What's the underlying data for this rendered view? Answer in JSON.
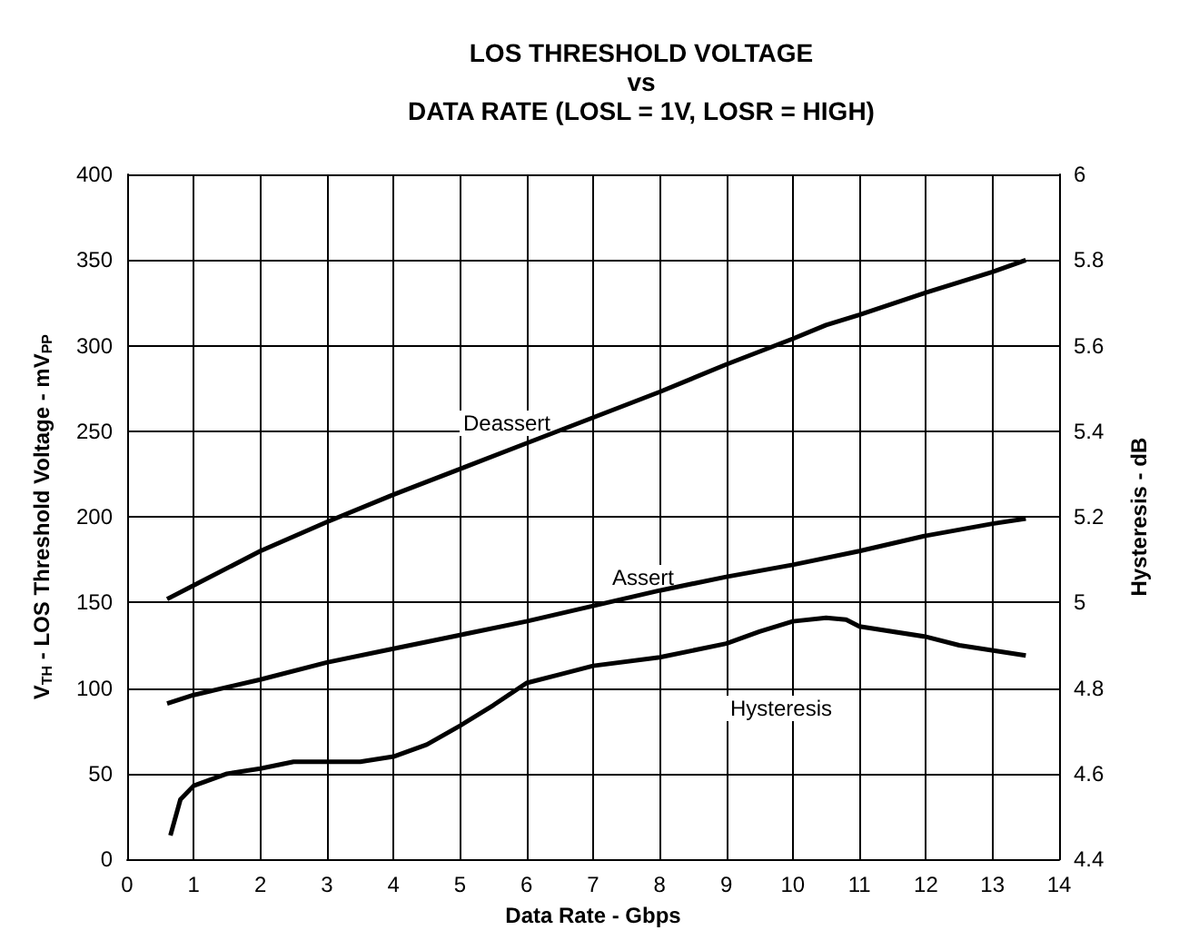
{
  "chart_data": {
    "type": "line",
    "title": "LOS THRESHOLD VOLTAGE\nvs\nDATA RATE (LOSL = 1V, LOSR = HIGH)",
    "xlabel": "Data Rate - Gbps",
    "ylabel": "V$_{TH}$ - LOS Threshold Voltage - mV$_{PP}$",
    "y2label": "Hysteresis - dB",
    "xlim": [
      0,
      14
    ],
    "xticks": [
      0,
      1,
      2,
      3,
      4,
      5,
      6,
      7,
      8,
      9,
      10,
      11,
      12,
      13,
      14
    ],
    "ylim": [
      0,
      400
    ],
    "yticks": [
      0,
      50,
      100,
      150,
      200,
      250,
      300,
      350,
      400
    ],
    "y2lim": [
      4.4,
      6
    ],
    "y2ticks": [
      4.4,
      4.6,
      4.8,
      5,
      5.2,
      5.4,
      5.6,
      5.8,
      6
    ],
    "grid": true,
    "marker": "none",
    "line_style": "solid",
    "series": [
      {
        "color": "#000000",
        "x": [
          0.6,
          1,
          2,
          3,
          4,
          5,
          6,
          7,
          8,
          9,
          10,
          10.5,
          11,
          12,
          13,
          13.5
        ],
        "values": [
          152,
          160,
          180,
          197,
          213,
          228,
          243,
          258,
          273,
          289,
          304,
          312,
          318,
          331,
          343,
          350
        ]
      },
      {
        "color": "#000000",
        "x": [
          0.6,
          1,
          2,
          3,
          4,
          5,
          6,
          7,
          8,
          9,
          10,
          11,
          12,
          13,
          13.5
        ],
        "values": [
          91,
          96,
          105,
          115,
          123,
          131,
          139,
          148,
          157,
          165,
          172,
          180,
          189,
          196,
          199
        ]
      },
      {
        "color": "#000000",
        "axis": "y2",
        "x": [
          0.65,
          0.8,
          1,
          1.5,
          2,
          2.5,
          3,
          3.5,
          4,
          4.5,
          5,
          5.5,
          6,
          6.5,
          7,
          8,
          9,
          9.5,
          10,
          10.5,
          10.8,
          11,
          12,
          12.5,
          13.5
        ],
        "values": [
          4.456,
          4.54,
          4.572,
          4.6,
          4.612,
          4.628,
          4.628,
          4.628,
          4.64,
          4.668,
          4.712,
          4.76,
          4.812,
          4.832,
          4.852,
          4.872,
          4.904,
          4.932,
          4.956,
          4.964,
          4.96,
          4.944,
          4.92,
          4.9,
          4.876
        ]
      }
    ],
    "annotations": [
      "Deassert",
      "Assert",
      "Hysteresis"
    ]
  }
}
